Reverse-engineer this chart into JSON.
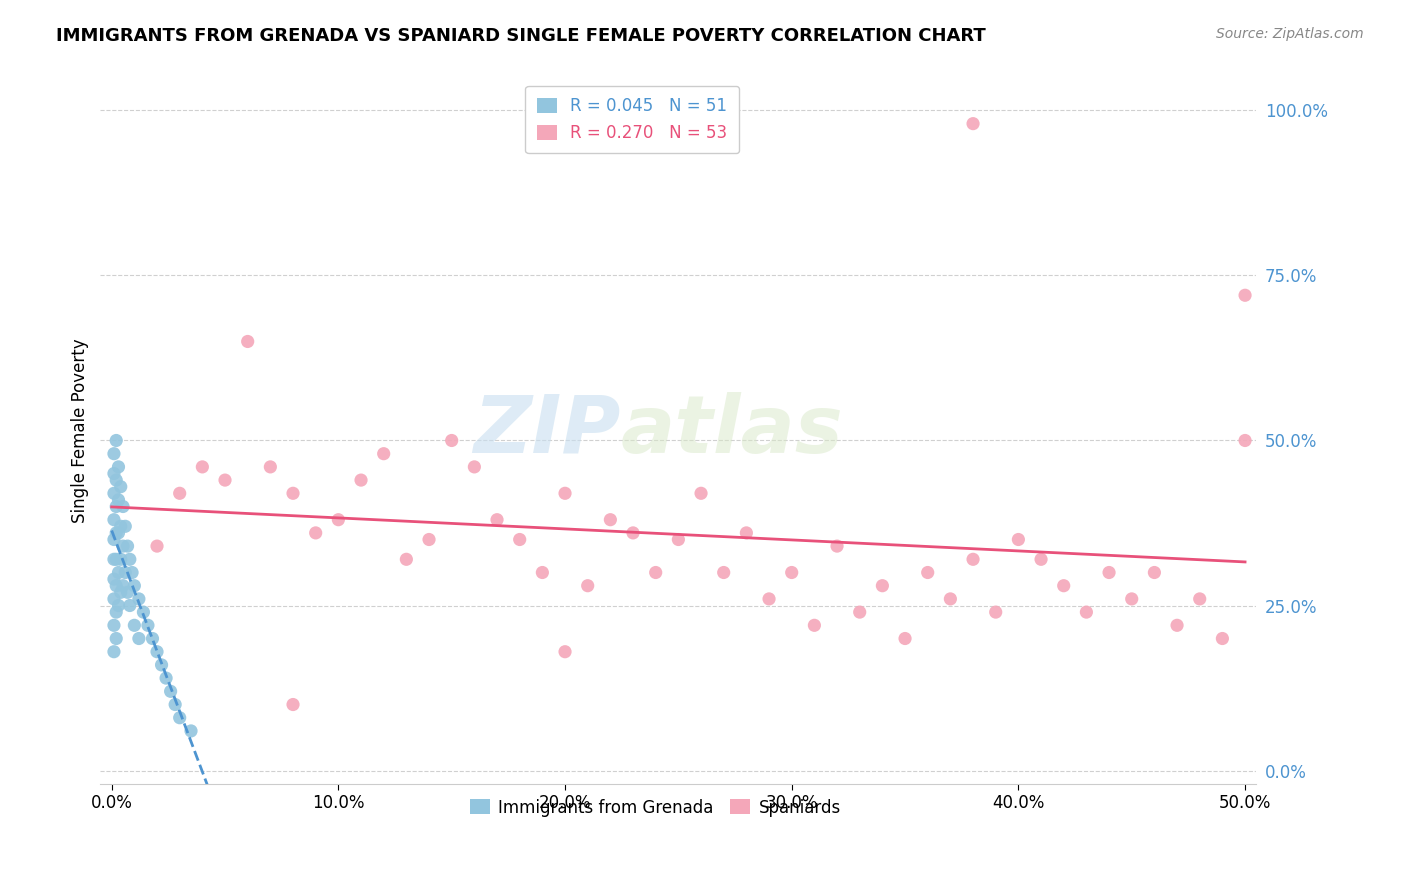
{
  "title": "IMMIGRANTS FROM GRENADA VS SPANIARD SINGLE FEMALE POVERTY CORRELATION CHART",
  "source": "Source: ZipAtlas.com",
  "ylabel_label": "Single Female Poverty",
  "legend_labels": [
    "Immigrants from Grenada",
    "Spaniards"
  ],
  "R_grenada": 0.045,
  "N_grenada": 51,
  "R_spaniard": 0.27,
  "N_spaniard": 53,
  "color_grenada": "#92c5de",
  "color_spaniard": "#f4a7b9",
  "trendline_grenada": "#4d94d0",
  "trendline_spaniard": "#e8517a",
  "watermark_zip": "ZIP",
  "watermark_atlas": "atlas",
  "xlim": [
    0.0,
    0.5
  ],
  "ylim": [
    0.0,
    1.05
  ],
  "xticks": [
    0.0,
    0.1,
    0.2,
    0.3,
    0.4,
    0.5
  ],
  "yticks": [
    0.0,
    0.25,
    0.5,
    0.75,
    1.0
  ],
  "xtick_labels": [
    "0.0%",
    "10.0%",
    "20.0%",
    "30.0%",
    "40.0%",
    "50.0%"
  ],
  "ytick_labels": [
    "0.0%",
    "25.0%",
    "50.0%",
    "75.0%",
    "100.0%"
  ],
  "grenada_x": [
    0.001,
    0.001,
    0.001,
    0.001,
    0.001,
    0.001,
    0.001,
    0.001,
    0.001,
    0.001,
    0.002,
    0.002,
    0.002,
    0.002,
    0.002,
    0.002,
    0.002,
    0.002,
    0.003,
    0.003,
    0.003,
    0.003,
    0.003,
    0.004,
    0.004,
    0.004,
    0.004,
    0.005,
    0.005,
    0.005,
    0.006,
    0.006,
    0.007,
    0.007,
    0.008,
    0.008,
    0.009,
    0.01,
    0.01,
    0.012,
    0.012,
    0.014,
    0.016,
    0.018,
    0.02,
    0.022,
    0.024,
    0.026,
    0.028,
    0.03,
    0.035
  ],
  "grenada_y": [
    0.48,
    0.45,
    0.42,
    0.38,
    0.35,
    0.32,
    0.29,
    0.26,
    0.22,
    0.18,
    0.5,
    0.44,
    0.4,
    0.36,
    0.32,
    0.28,
    0.24,
    0.2,
    0.46,
    0.41,
    0.36,
    0.3,
    0.25,
    0.43,
    0.37,
    0.32,
    0.27,
    0.4,
    0.34,
    0.28,
    0.37,
    0.3,
    0.34,
    0.27,
    0.32,
    0.25,
    0.3,
    0.28,
    0.22,
    0.26,
    0.2,
    0.24,
    0.22,
    0.2,
    0.18,
    0.16,
    0.14,
    0.12,
    0.1,
    0.08,
    0.06
  ],
  "spaniard_x": [
    0.02,
    0.03,
    0.04,
    0.05,
    0.06,
    0.07,
    0.08,
    0.09,
    0.1,
    0.11,
    0.12,
    0.13,
    0.14,
    0.15,
    0.16,
    0.17,
    0.18,
    0.19,
    0.2,
    0.21,
    0.22,
    0.23,
    0.24,
    0.25,
    0.26,
    0.27,
    0.28,
    0.29,
    0.3,
    0.31,
    0.32,
    0.33,
    0.34,
    0.35,
    0.36,
    0.37,
    0.38,
    0.39,
    0.4,
    0.41,
    0.42,
    0.43,
    0.44,
    0.45,
    0.46,
    0.47,
    0.48,
    0.49,
    0.5,
    0.08,
    0.2,
    0.38,
    0.5
  ],
  "spaniard_y": [
    0.34,
    0.42,
    0.46,
    0.44,
    0.65,
    0.46,
    0.42,
    0.36,
    0.38,
    0.44,
    0.48,
    0.32,
    0.35,
    0.5,
    0.46,
    0.38,
    0.35,
    0.3,
    0.42,
    0.28,
    0.38,
    0.36,
    0.3,
    0.35,
    0.42,
    0.3,
    0.36,
    0.26,
    0.3,
    0.22,
    0.34,
    0.24,
    0.28,
    0.2,
    0.3,
    0.26,
    0.32,
    0.24,
    0.35,
    0.32,
    0.28,
    0.24,
    0.3,
    0.26,
    0.3,
    0.22,
    0.26,
    0.2,
    0.5,
    0.1,
    0.18,
    0.98,
    0.72
  ]
}
